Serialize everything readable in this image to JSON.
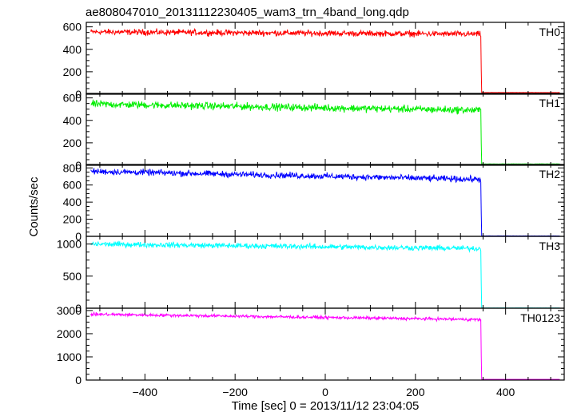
{
  "chart_data": {
    "type": "line",
    "title": "ae808047010_20131112230405_wam3_trn_4band_long.qdp",
    "xlabel": "Time [sec] 0 = 2013/11/12 23:04:05",
    "ylabel": "Counts/sec",
    "xlim": [
      -530,
      530
    ],
    "x_ticks": [
      -400,
      -200,
      0,
      200,
      400
    ],
    "drop_time": 345,
    "panels": [
      {
        "name": "TH0",
        "color": "#ff0000",
        "ylim": [
          0,
          640
        ],
        "y_ticks": [
          0,
          200,
          400,
          600
        ],
        "level_start": 555,
        "level_end": 535,
        "noise": 16,
        "after_drop": 15,
        "points": [
          [
            -520,
            555
          ],
          [
            -400,
            551
          ],
          [
            -200,
            545
          ],
          [
            0,
            545
          ],
          [
            200,
            541
          ],
          [
            340,
            535
          ],
          [
            345,
            535
          ],
          [
            350,
            15
          ],
          [
            520,
            15
          ]
        ]
      },
      {
        "name": "TH1",
        "color": "#00ee00",
        "ylim": [
          0,
          640
        ],
        "y_ticks": [
          0,
          200,
          400,
          600
        ],
        "level_start": 545,
        "level_end": 490,
        "noise": 20,
        "after_drop": 12,
        "points": [
          [
            -520,
            545
          ],
          [
            -400,
            535
          ],
          [
            -200,
            520
          ],
          [
            0,
            512
          ],
          [
            200,
            500
          ],
          [
            340,
            490
          ],
          [
            345,
            490
          ],
          [
            350,
            12
          ],
          [
            520,
            12
          ]
        ]
      },
      {
        "name": "TH2",
        "color": "#0000ff",
        "ylim": [
          0,
          840
        ],
        "y_ticks": [
          0,
          200,
          400,
          600,
          800
        ],
        "level_start": 760,
        "level_end": 665,
        "noise": 22,
        "after_drop": 5,
        "points": [
          [
            -520,
            760
          ],
          [
            -400,
            745
          ],
          [
            -200,
            725
          ],
          [
            0,
            705
          ],
          [
            200,
            685
          ],
          [
            340,
            665
          ],
          [
            345,
            665
          ],
          [
            350,
            5
          ],
          [
            520,
            5
          ]
        ]
      },
      {
        "name": "TH3",
        "color": "#00ffff",
        "ylim": [
          0,
          1120
        ],
        "y_ticks": [
          0,
          500,
          1000
        ],
        "level_start": 1000,
        "level_end": 930,
        "noise": 26,
        "after_drop": 4,
        "points": [
          [
            -520,
            1000
          ],
          [
            -400,
            985
          ],
          [
            -200,
            970
          ],
          [
            0,
            955
          ],
          [
            200,
            945
          ],
          [
            340,
            930
          ],
          [
            345,
            930
          ],
          [
            350,
            4
          ],
          [
            520,
            4
          ]
        ]
      },
      {
        "name": "TH0123",
        "color": "#ff00ff",
        "ylim": [
          0,
          3100
        ],
        "y_ticks": [
          0,
          1000,
          2000,
          3000
        ],
        "level_start": 2840,
        "level_end": 2610,
        "noise": 40,
        "after_drop": 30,
        "points": [
          [
            -520,
            2840
          ],
          [
            -400,
            2800
          ],
          [
            -200,
            2750
          ],
          [
            0,
            2710
          ],
          [
            200,
            2660
          ],
          [
            340,
            2610
          ],
          [
            345,
            2610
          ],
          [
            350,
            30
          ],
          [
            520,
            30
          ]
        ]
      }
    ]
  }
}
